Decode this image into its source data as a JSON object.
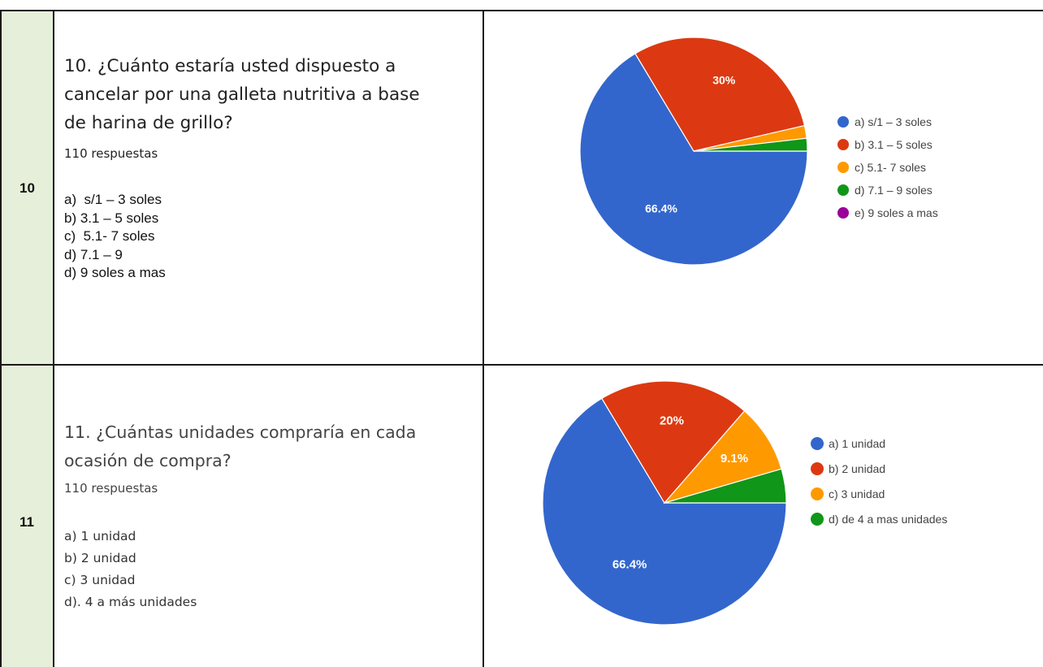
{
  "rows": [
    {
      "number": "10",
      "question_lines": [
        "10. ¿Cuánto estaría usted dispuesto a",
        "cancelar por una galleta nutritiva a base",
        "de harina de grillo?"
      ],
      "responses": "110 respuestas",
      "options": [
        "a)  s/1 – 3 soles",
        "b) 3.1 – 5 soles",
        "c)  5.1- 7 soles",
        "d) 7.1 – 9",
        "d) 9 soles a mas"
      ]
    },
    {
      "number": "11",
      "question_lines": [
        "11. ¿Cuántas unidades compraría en cada",
        "ocasión de compra?"
      ],
      "responses": "110 respuestas",
      "options": [
        "a) 1 unidad",
        "b) 2 unidad",
        "c) 3 unidad",
        "d). 4 a más unidades"
      ]
    }
  ],
  "chart_data": [
    {
      "type": "pie",
      "categories": [
        "a) s/1 – 3 soles",
        "b) 3.1 – 5 soles",
        "c) 5.1- 7 soles",
        "d) 7.1 – 9 soles",
        "e) 9 soles a mas"
      ],
      "values": [
        66.4,
        30,
        1.8,
        1.8,
        0
      ],
      "labels": [
        "66.4%",
        "30%",
        "",
        "",
        ""
      ],
      "colors": [
        "#3366cc",
        "#dc3912",
        "#ff9900",
        "#109618",
        "#990099"
      ],
      "legend": "right"
    },
    {
      "type": "pie",
      "categories": [
        "a) 1 unidad",
        "b) 2 unidad",
        "c) 3 unidad",
        "d) de 4 a mas unidades"
      ],
      "values": [
        66.4,
        20,
        9.1,
        4.5
      ],
      "labels": [
        "66.4%",
        "20%",
        "9.1%",
        ""
      ],
      "colors": [
        "#3366cc",
        "#dc3912",
        "#ff9900",
        "#109618"
      ],
      "legend": "right"
    }
  ]
}
